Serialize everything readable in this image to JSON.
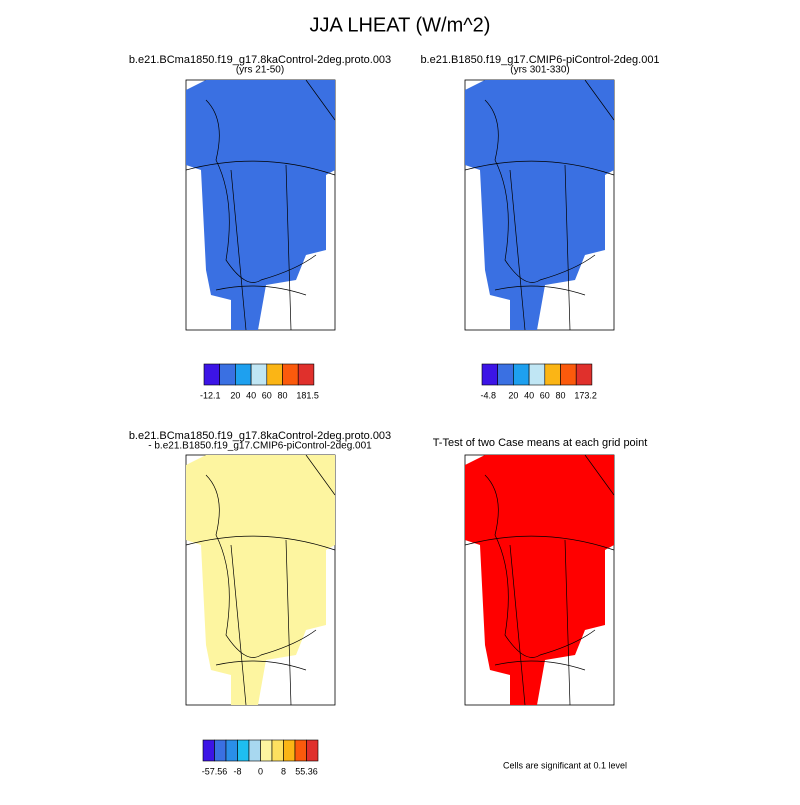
{
  "title": "JJA LHEAT (W/m^2)",
  "panels": [
    {
      "title": [
        "b.e21.BCma1850.f19_g17.8kaControl-2deg.proto.003",
        "(yrs 21-50)"
      ],
      "fill": "#3a70e2",
      "colorbar": {
        "colors": [
          "#3c14e6",
          "#3a70e2",
          "#1ea0ef",
          "#c0e6f4",
          "#fbb515",
          "#fb5a0c",
          "#e0302c"
        ],
        "labels": [
          "-12.1",
          "20",
          "40",
          "60",
          "80",
          "181.5"
        ]
      }
    },
    {
      "title": [
        "b.e21.B1850.f19_g17.CMIP6-piControl-2deg.001",
        "(yrs 301-330)"
      ],
      "fill": "#3a70e2",
      "colorbar": {
        "colors": [
          "#3c14e6",
          "#3a70e2",
          "#1ea0ef",
          "#c0e6f4",
          "#fbb515",
          "#fb5a0c",
          "#e0302c"
        ],
        "labels": [
          "-4.8",
          "20",
          "40",
          "60",
          "80",
          "173.2"
        ]
      }
    },
    {
      "title": [
        "b.e21.BCma1850.f19_g17.8kaControl-2deg.proto.003",
        "- b.e21.B1850.f19_g17.CMIP6-piControl-2deg.001"
      ],
      "fill": "#fdf5a0",
      "colorbar": {
        "colors": [
          "#3c14e6",
          "#3a70e2",
          "#2a8ee8",
          "#1ebef0",
          "#a8d8f0",
          "#fdf5a0",
          "#fde060",
          "#fbb515",
          "#fb5a0c",
          "#e0302c"
        ],
        "labels": [
          "-57.56",
          "-8",
          "0",
          "8",
          "55.36"
        ]
      }
    },
    {
      "title": [
        "T-Test of two Case means at each grid point"
      ],
      "fill": "#ff0000"
    }
  ],
  "footnote": "Cells are significant at 0.1 level"
}
